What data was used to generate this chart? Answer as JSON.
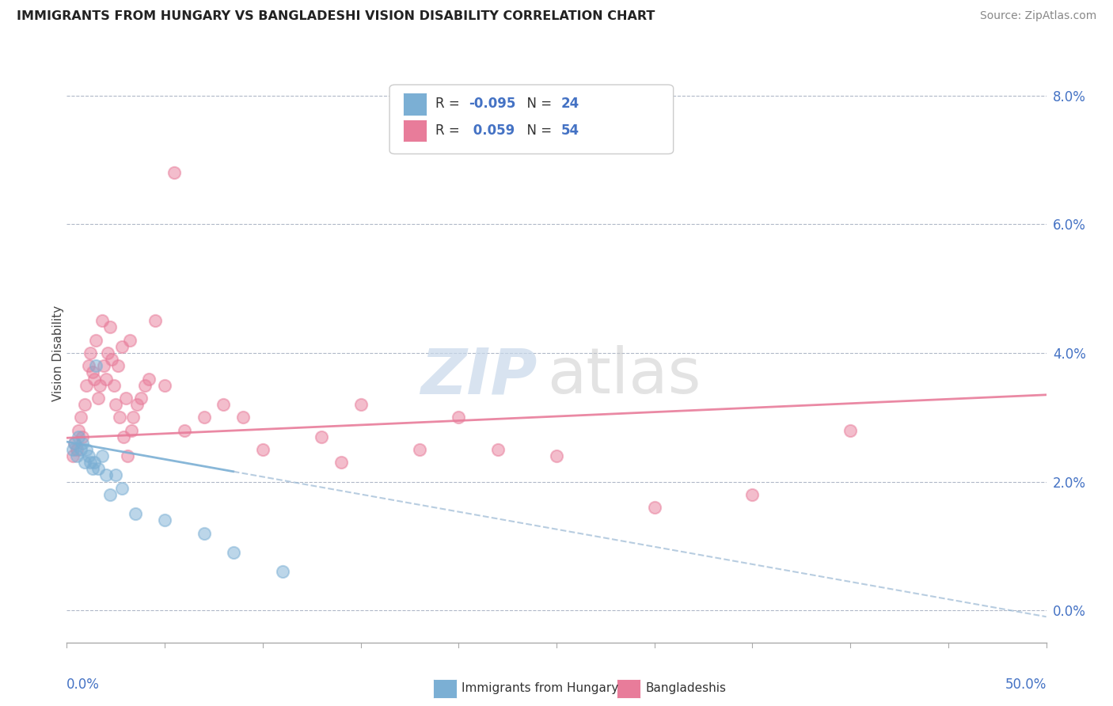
{
  "title": "IMMIGRANTS FROM HUNGARY VS BANGLADESHI VISION DISABILITY CORRELATION CHART",
  "source": "Source: ZipAtlas.com",
  "ylabel": "Vision Disability",
  "right_ytick_vals": [
    0.0,
    2.0,
    4.0,
    6.0,
    8.0
  ],
  "xmin": 0.0,
  "xmax": 50.0,
  "ymin": -0.5,
  "ymax": 8.5,
  "legend_R1": "-0.095",
  "legend_N1": "24",
  "legend_R2": "0.059",
  "legend_N2": "54",
  "color_hungary": "#7bafd4",
  "color_bangladesh": "#e87c9a",
  "hu_line_start_y": 2.62,
  "hu_line_end_y": -0.1,
  "bd_line_start_y": 2.68,
  "bd_line_end_y": 3.35,
  "hungary_scatter_x": [
    0.3,
    0.4,
    0.5,
    0.6,
    0.7,
    0.8,
    0.9,
    1.0,
    1.1,
    1.2,
    1.3,
    1.4,
    1.5,
    1.6,
    1.8,
    2.0,
    2.2,
    2.5,
    2.8,
    3.5,
    5.0,
    7.0,
    8.5,
    11.0
  ],
  "hungary_scatter_y": [
    2.5,
    2.6,
    2.4,
    2.7,
    2.5,
    2.6,
    2.3,
    2.5,
    2.4,
    2.3,
    2.2,
    2.3,
    3.8,
    2.2,
    2.4,
    2.1,
    1.8,
    2.1,
    1.9,
    1.5,
    1.4,
    1.2,
    0.9,
    0.6
  ],
  "bangladesh_scatter_x": [
    0.3,
    0.4,
    0.5,
    0.6,
    0.7,
    0.8,
    0.9,
    1.0,
    1.1,
    1.2,
    1.3,
    1.4,
    1.5,
    1.6,
    1.7,
    1.8,
    1.9,
    2.0,
    2.1,
    2.2,
    2.3,
    2.4,
    2.5,
    2.6,
    2.8,
    3.0,
    3.2,
    3.4,
    3.6,
    4.0,
    4.5,
    5.0,
    5.5,
    6.0,
    7.0,
    8.0,
    9.0,
    10.0,
    13.0,
    15.0,
    18.0,
    20.0,
    25.0,
    30.0,
    35.0,
    40.0,
    14.0,
    22.0,
    2.7,
    2.9,
    3.1,
    3.3,
    3.8,
    4.2
  ],
  "bangladesh_scatter_y": [
    2.4,
    2.6,
    2.5,
    2.8,
    3.0,
    2.7,
    3.2,
    3.5,
    3.8,
    4.0,
    3.7,
    3.6,
    4.2,
    3.3,
    3.5,
    4.5,
    3.8,
    3.6,
    4.0,
    4.4,
    3.9,
    3.5,
    3.2,
    3.8,
    4.1,
    3.3,
    4.2,
    3.0,
    3.2,
    3.5,
    4.5,
    3.5,
    6.8,
    2.8,
    3.0,
    3.2,
    3.0,
    2.5,
    2.7,
    3.2,
    2.5,
    3.0,
    2.4,
    1.6,
    1.8,
    2.8,
    2.3,
    2.5,
    3.0,
    2.7,
    2.4,
    2.8,
    3.3,
    3.6
  ]
}
